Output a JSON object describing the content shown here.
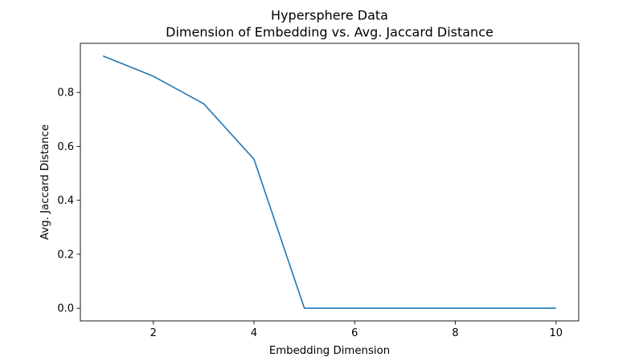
{
  "chart_data": {
    "type": "line",
    "title_line1": "Hypersphere Data",
    "title_line2": "Dimension of Embedding vs. Avg. Jaccard Distance",
    "xlabel": "Embedding Dimension",
    "ylabel": "Avg. Jaccard Distance",
    "x": [
      1,
      2,
      3,
      4,
      5,
      6,
      7,
      8,
      9,
      10
    ],
    "y": [
      0.935,
      0.86,
      0.758,
      0.552,
      0.0,
      0.0,
      0.0,
      0.0,
      0.0,
      0.0
    ],
    "xlim": [
      0.55,
      10.45
    ],
    "ylim": [
      -0.047,
      0.982
    ],
    "xticks": [
      2,
      4,
      6,
      8,
      10
    ],
    "xtick_labels": [
      "2",
      "4",
      "6",
      "8",
      "10"
    ],
    "yticks": [
      0.0,
      0.2,
      0.4,
      0.6,
      0.8
    ],
    "ytick_labels": [
      "0.0",
      "0.2",
      "0.4",
      "0.6",
      "0.8"
    ],
    "grid": false,
    "line_color": "#1f77b4"
  }
}
